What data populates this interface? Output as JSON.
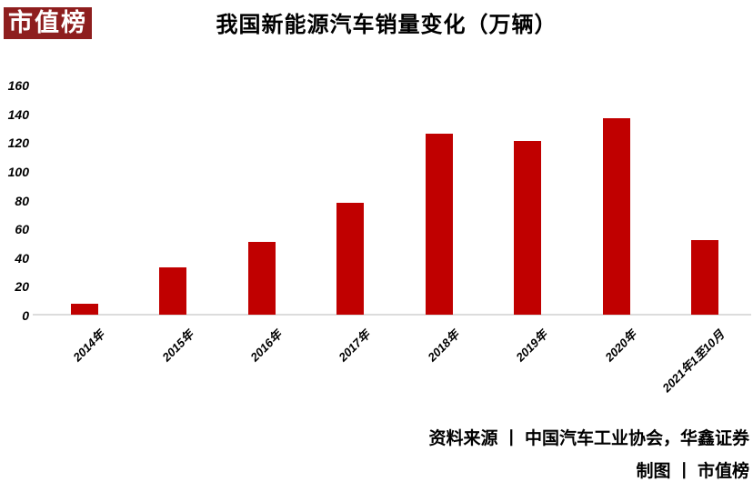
{
  "logo": {
    "text": "市值榜",
    "bg_color": "#8E1E1E",
    "text_color": "#FFFFFF"
  },
  "chart_data": {
    "type": "bar",
    "title": "我国新能源汽车销量变化（万辆）",
    "categories": [
      "2014年",
      "2015年",
      "2016年",
      "2017年",
      "2018年",
      "2019年",
      "2020年",
      "2021年1至10月"
    ],
    "values": [
      7.5,
      33.1,
      50.7,
      77.7,
      125.6,
      120.6,
      136.7,
      52
    ],
    "xlabel": "",
    "ylabel": "",
    "ylim": [
      0,
      160
    ],
    "ytick_step": 20,
    "yticks": [
      0,
      20,
      40,
      60,
      80,
      100,
      120,
      140,
      160
    ],
    "grid": false,
    "legend": "none",
    "bar_color": "#C00000",
    "axis_line_color": "#DCDCDC",
    "tick_label_color": "#000000"
  },
  "footer": {
    "source": "资料来源 丨 中国汽车工业协会，华鑫证券",
    "credit": "制图 丨 市值榜"
  }
}
